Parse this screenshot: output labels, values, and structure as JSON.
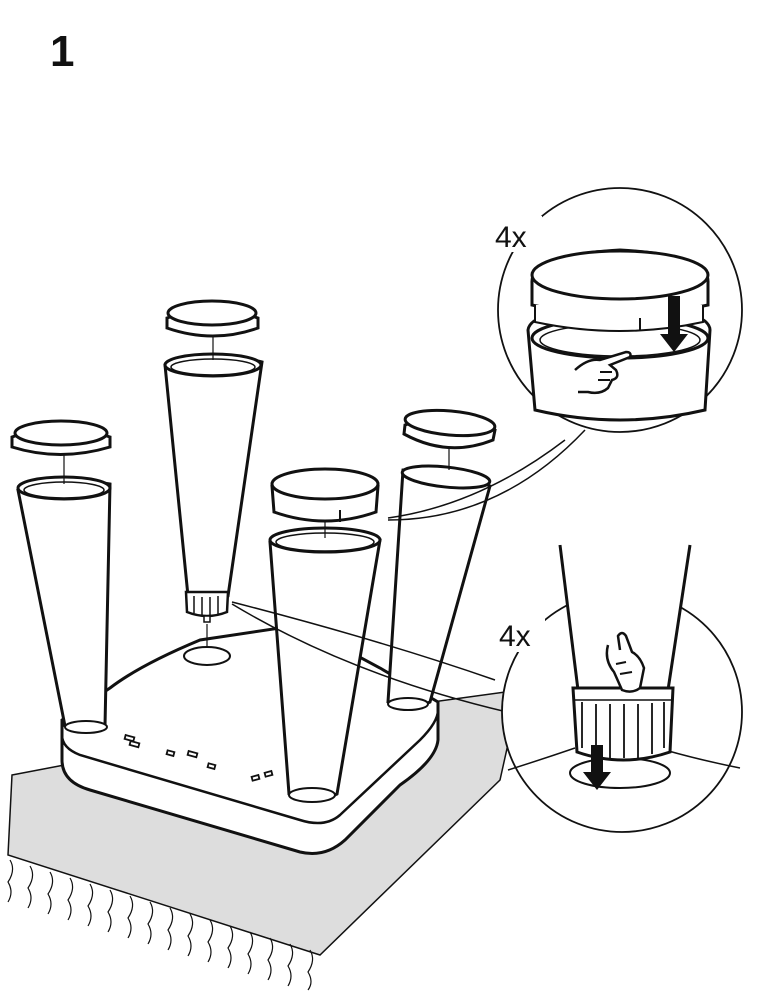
{
  "step": "1",
  "callouts": [
    {
      "multiplier": "4x"
    },
    {
      "multiplier": "4x"
    }
  ],
  "colors": {
    "line": "#111111",
    "fill": "#ffffff",
    "rug": "#dddddd"
  },
  "icons": [
    "pointing-hand-icon",
    "arrow-down-icon",
    "arrow-down-icon",
    "pointing-hand-icon"
  ]
}
